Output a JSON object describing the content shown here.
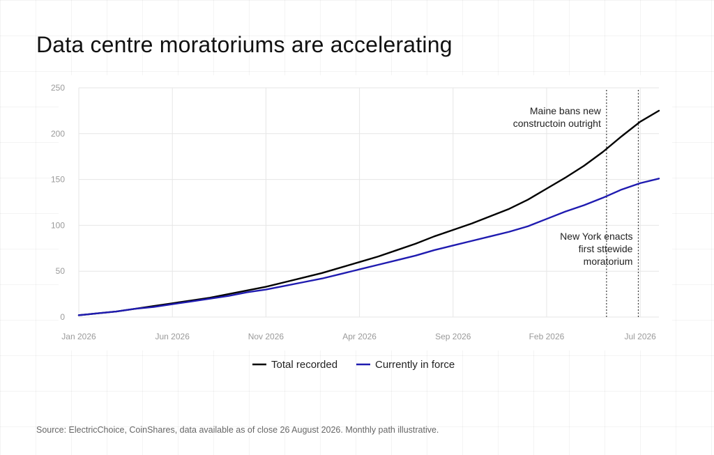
{
  "title": "Data centre moratoriums are accelerating",
  "source": "Source: ElectricChoice, CoinShares, data available as of close 26 August 2026. Monthly path illustrative.",
  "colors": {
    "total": "#000000",
    "in_force": "#1f1bb0",
    "grid": "#e6e6e6",
    "tick": "#9a9a9a"
  },
  "chart_data": {
    "type": "line",
    "title": "Data centre moratoriums are accelerating",
    "xlabel": "",
    "ylabel": "",
    "ylim": [
      0,
      250
    ],
    "yticks": [
      0,
      50,
      100,
      150,
      200,
      250
    ],
    "x_tick_labels": [
      "Jan 2026",
      "Jun 2026",
      "Nov 2026",
      "Apr 2026",
      "Sep 2026",
      "Feb 2026",
      "Jul 2026"
    ],
    "x_tick_positions": [
      0,
      5,
      10,
      15,
      20,
      25,
      30
    ],
    "grid": true,
    "legend_position": "bottom-center",
    "x": [
      0,
      1,
      2,
      3,
      4,
      5,
      6,
      7,
      8,
      9,
      10,
      11,
      12,
      13,
      14,
      15,
      16,
      17,
      18,
      19,
      20,
      21,
      22,
      23,
      24,
      25,
      26,
      27,
      28,
      29,
      30,
      31
    ],
    "series": [
      {
        "name": "Total recorded",
        "values": [
          2,
          4,
          6,
          9,
          12,
          15,
          18,
          21,
          25,
          29,
          33,
          38,
          43,
          48,
          54,
          60,
          66,
          73,
          80,
          88,
          95,
          102,
          110,
          118,
          128,
          140,
          152,
          165,
          180,
          197,
          213,
          225
        ]
      },
      {
        "name": "Currently in force",
        "values": [
          2,
          4,
          6,
          9,
          11,
          14,
          17,
          20,
          23,
          27,
          30,
          34,
          38,
          42,
          47,
          52,
          57,
          62,
          67,
          73,
          78,
          83,
          88,
          93,
          99,
          107,
          115,
          122,
          130,
          139,
          146,
          151
        ]
      }
    ],
    "annotations": [
      {
        "x": 28.2,
        "lines": [
          "Maine bans new",
          "constructoin outright"
        ]
      },
      {
        "x": 29.9,
        "lines": [
          "New York enacts",
          "first sttewide",
          "moratorium"
        ]
      }
    ]
  }
}
